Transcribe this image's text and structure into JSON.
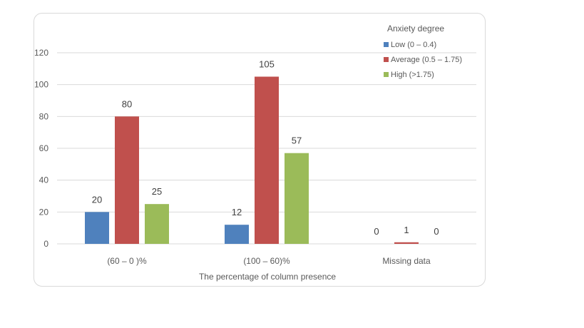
{
  "chart_data": {
    "type": "bar",
    "title": "",
    "xlabel": "The percentage of column presence",
    "ylabel": "",
    "ylim": [
      0,
      120
    ],
    "yticks": [
      0,
      20,
      40,
      60,
      80,
      100,
      120
    ],
    "grid": true,
    "legend": {
      "title": "Anxiety degree",
      "placement": "top-right"
    },
    "categories": [
      "(60 – 0 )%",
      "(100 – 60)%",
      "Missing data"
    ],
    "series": [
      {
        "name": "Low (0 – 0.4)",
        "color": "#4f81bd",
        "values": [
          20,
          12,
          0
        ]
      },
      {
        "name": "Average (0.5 – 1.75)",
        "color": "#c0504d",
        "values": [
          80,
          105,
          1
        ]
      },
      {
        "name": "High (>1.75)",
        "color": "#9bbb59",
        "values": [
          25,
          57,
          0
        ]
      }
    ]
  }
}
